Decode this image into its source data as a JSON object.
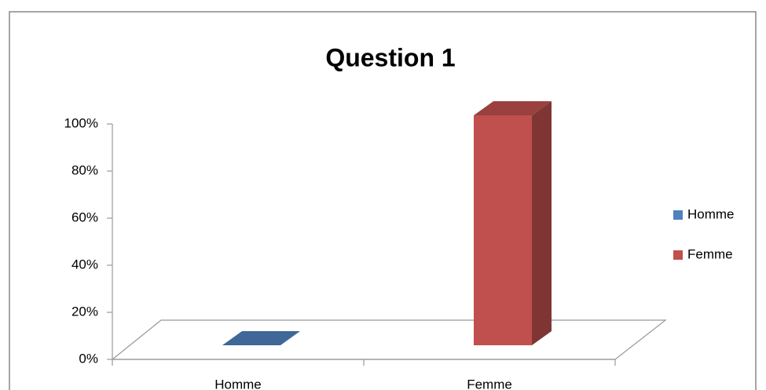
{
  "chart_data": {
    "type": "bar3d",
    "title": "Question 1",
    "categories": [
      "Homme",
      "Femme"
    ],
    "values": [
      0,
      100
    ],
    "colors": [
      "#4f81bd",
      "#c0504d"
    ],
    "ylim": [
      0,
      100
    ],
    "yticks": [
      {
        "value": 0,
        "label": "0%"
      },
      {
        "value": 20,
        "label": "20%"
      },
      {
        "value": 40,
        "label": "40%"
      },
      {
        "value": 60,
        "label": "60%"
      },
      {
        "value": 80,
        "label": "80%"
      },
      {
        "value": 100,
        "label": "100%"
      }
    ],
    "legend": "right"
  }
}
